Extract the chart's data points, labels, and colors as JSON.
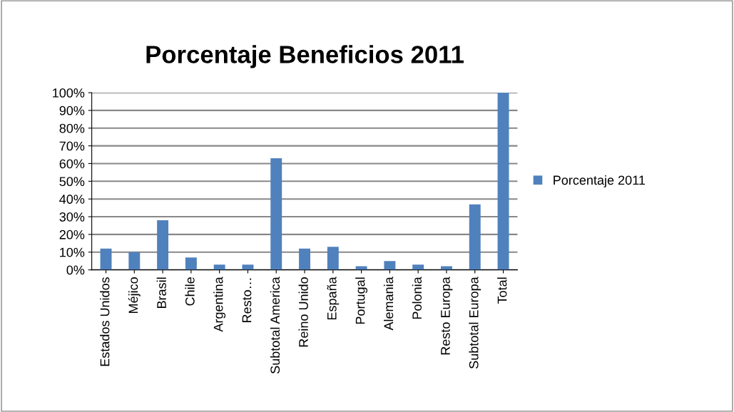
{
  "chart_data": {
    "type": "bar",
    "title": "Porcentaje Beneficios 2011",
    "categories": [
      "Estados Unidos",
      "Méjico",
      "Brasil",
      "Chile",
      "Argentina",
      "Resto…",
      "Subtotal America",
      "Reino Unido",
      "España",
      "Portugal",
      "Alemania",
      "Polonia",
      "Resto Europa",
      "Subtotal Europa",
      "Total"
    ],
    "series": [
      {
        "name": "Porcentaje 2011",
        "color": "#4f81bd",
        "values": [
          12,
          10,
          28,
          7,
          3,
          3,
          63,
          12,
          13,
          2,
          5,
          3,
          2,
          37,
          100
        ]
      }
    ],
    "ylim": [
      0,
      100
    ],
    "yticks": [
      {
        "value": 0,
        "label": "0%"
      },
      {
        "value": 10,
        "label": "10%"
      },
      {
        "value": 20,
        "label": "20%"
      },
      {
        "value": 30,
        "label": "30%"
      },
      {
        "value": 40,
        "label": "40%"
      },
      {
        "value": 50,
        "label": "50%"
      },
      {
        "value": 60,
        "label": "60%"
      },
      {
        "value": 70,
        "label": "70%"
      },
      {
        "value": 80,
        "label": "80%"
      },
      {
        "value": 90,
        "label": "90%"
      },
      {
        "value": 100,
        "label": "100%"
      }
    ],
    "grid": "y",
    "legend": "right"
  }
}
